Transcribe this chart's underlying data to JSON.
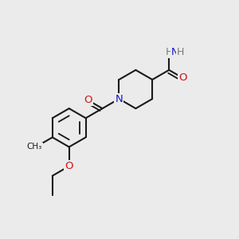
{
  "bg_color": "#ebebeb",
  "bond_color": "#1a1a1a",
  "bond_width": 1.5,
  "dbo": 0.013,
  "fs": 9.5,
  "colors": {
    "N": "#1414cc",
    "O": "#cc1414",
    "C": "#1a1a1a",
    "H": "#7a7a7a"
  },
  "figsize": [
    3.0,
    3.0
  ],
  "dpi": 100
}
